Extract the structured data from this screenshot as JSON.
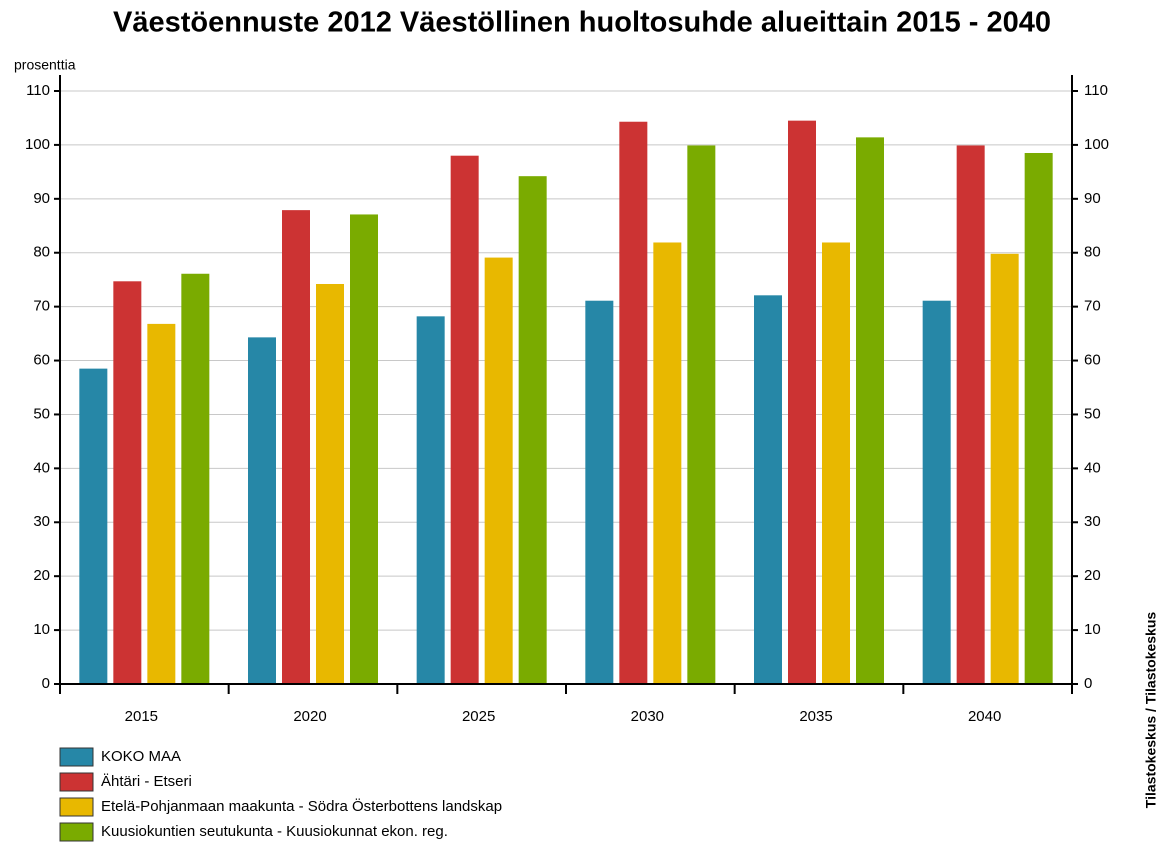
{
  "chart_data": {
    "type": "bar",
    "title": "Väestöennuste 2012 Väestöllinen huoltosuhde alueittain 2015 - 2040",
    "y_label": "prosenttia",
    "source": "Tilastokeskus / Tilastokeskus",
    "categories": [
      "2015",
      "2020",
      "2025",
      "2030",
      "2035",
      "2040"
    ],
    "series": [
      {
        "name": "KOKO MAA",
        "color": "#2687a7",
        "values": [
          58.5,
          64.3,
          68.2,
          71.1,
          72.1,
          71.1
        ]
      },
      {
        "name": "Ähtäri - Etseri",
        "color": "#cc3333",
        "values": [
          74.7,
          87.9,
          98.0,
          104.3,
          104.5,
          99.9
        ]
      },
      {
        "name": "Etelä-Pohjanmaan maakunta - Södra Österbottens landskap",
        "color": "#e8b800",
        "values": [
          66.8,
          74.2,
          79.1,
          81.9,
          81.9,
          79.8
        ]
      },
      {
        "name": "Kuusiokuntien seutukunta - Kuusiokunnat ekon. reg.",
        "color": "#7aab00",
        "values": [
          76.1,
          87.1,
          94.2,
          99.9,
          101.4,
          98.5
        ]
      }
    ],
    "ylim": [
      0,
      110
    ],
    "yticks": [
      0,
      10,
      20,
      30,
      40,
      50,
      60,
      70,
      80,
      90,
      100,
      110
    ],
    "grid": true
  }
}
